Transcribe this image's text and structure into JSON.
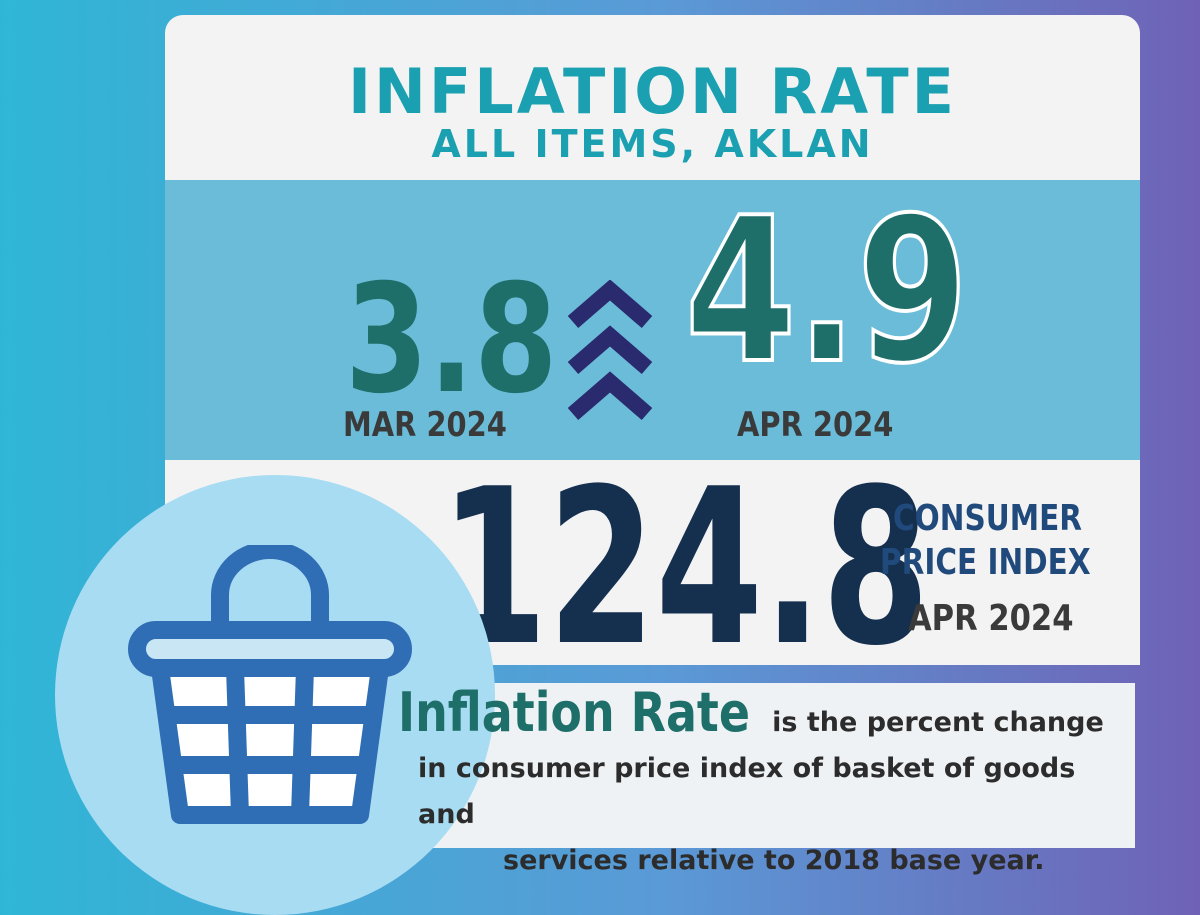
{
  "header": {
    "title": "INFLATION RATE",
    "subtitle": "ALL ITEMS, AKLAN"
  },
  "rates": {
    "previous": {
      "value": "3.8",
      "period": "MAR 2024"
    },
    "current": {
      "value": "4.9",
      "period": "APR 2024"
    }
  },
  "cpi": {
    "value": "124.8",
    "label_lines": [
      "CONSUMER",
      "PRICE INDEX"
    ],
    "period": "APR 2024"
  },
  "definition": {
    "term": "Inflation Rate",
    "lines": [
      "is  the percent change",
      "in consumer price index of basket of goods and",
      "services relative to 2018 base year."
    ]
  }
}
